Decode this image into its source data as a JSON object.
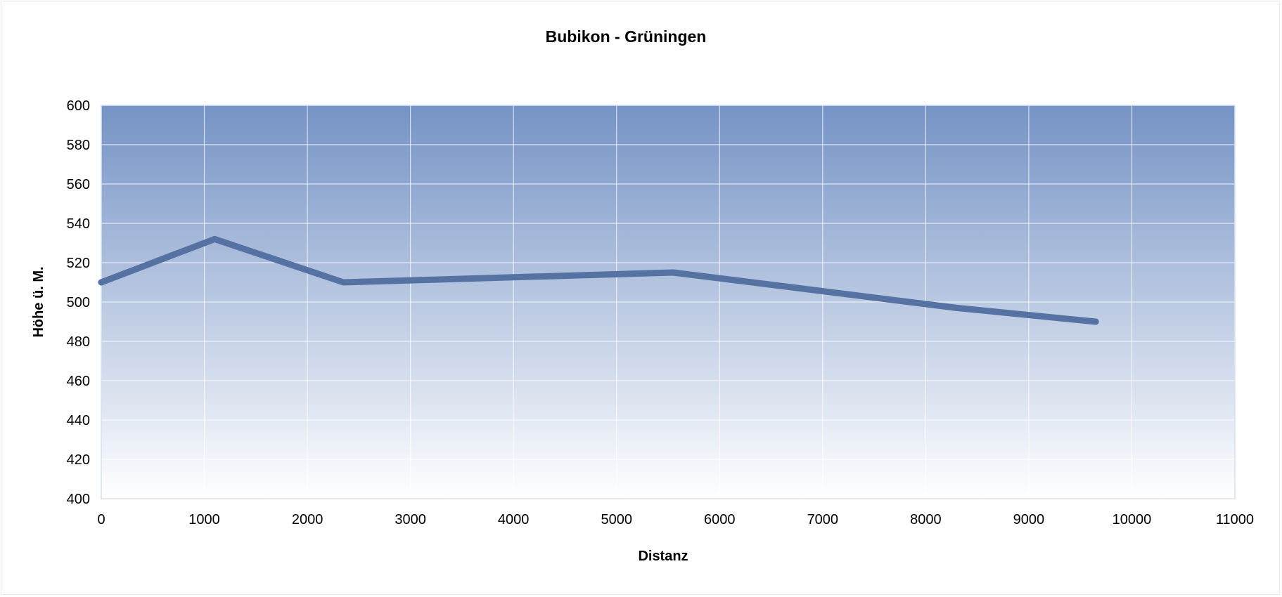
{
  "chart_data": {
    "type": "line",
    "title": "Bubikon - Grüningen",
    "xlabel": "Distanz",
    "ylabel": "Höhe ü. M.",
    "xlim": [
      0,
      11000
    ],
    "ylim": [
      400,
      600
    ],
    "xticks": [
      0,
      1000,
      2000,
      3000,
      4000,
      5000,
      6000,
      7000,
      8000,
      9000,
      10000,
      11000
    ],
    "yticks": [
      400,
      420,
      440,
      460,
      480,
      500,
      520,
      540,
      560,
      580,
      600
    ],
    "grid": true,
    "legend": "none",
    "series": [
      {
        "color": "#5672a3",
        "x": [
          0,
          1100,
          2350,
          5550,
          8300,
          9650
        ],
        "y": [
          510,
          532,
          510,
          515,
          497,
          490
        ]
      }
    ]
  },
  "colors": {
    "plot_top": "#7593c5",
    "plot_bottom": "#ffffff",
    "grid": "#ffffff",
    "line": "#5672a3"
  }
}
